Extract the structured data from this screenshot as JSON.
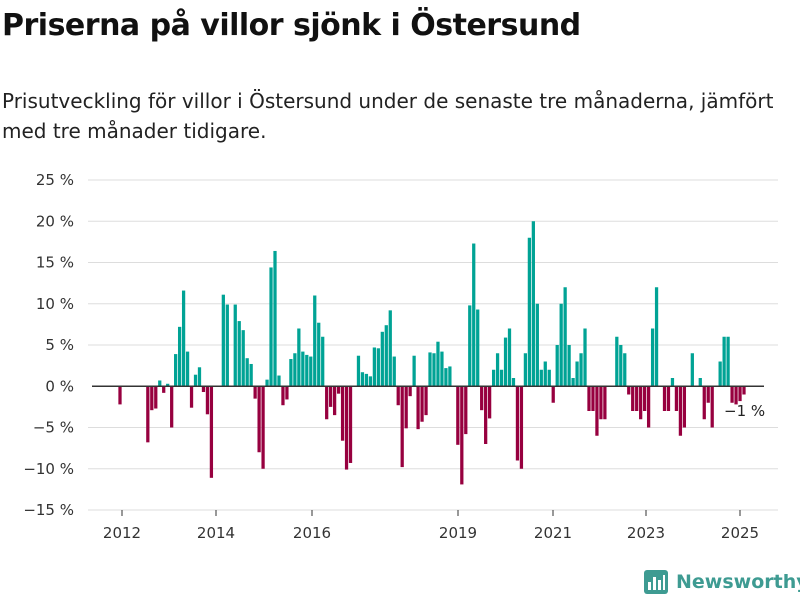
{
  "header": {
    "title": "Priserna på villor sjönk i Östersund",
    "subtitle": "Prisutveckling för villor i Östersund under de senaste tre månaderna, jämfört med tre månader tidigare."
  },
  "brand": {
    "name": "Newsworthy",
    "icon": "bar-chart-logo-icon"
  },
  "chart_data": {
    "type": "bar",
    "title": "Priserna på villor sjönk i Östersund",
    "subtitle": "Prisutveckling för villor i Östersund under de senaste tre månaderna, jämfört med tre månader tidigare.",
    "xlabel": "",
    "ylabel": "",
    "ylim": [
      -15,
      25
    ],
    "y_ticks": [
      25,
      20,
      15,
      10,
      5,
      0,
      -5,
      -10,
      -15
    ],
    "y_tick_labels": [
      "25 %",
      "20 %",
      "15 %",
      "10 %",
      "5 %",
      "0 %",
      "−5 %",
      "−10 %",
      "−15 %"
    ],
    "x_ticks": [
      "2012",
      "2014",
      "2016",
      "2019",
      "2021",
      "2023",
      "2025"
    ],
    "grid": true,
    "colors": {
      "positive": "#00a395",
      "negative": "#97003f",
      "grid": "#dddddd",
      "zero_line": "#333333"
    },
    "annotation": "−1 %",
    "series": [
      {
        "values": [
          -2.2,
          0,
          0,
          0,
          0,
          0,
          0,
          -6.8,
          -2.9,
          -2.7,
          0.7,
          -0.8,
          0.3,
          -5,
          3.9,
          7.2,
          11.6,
          4.2,
          -2.6,
          1.4,
          2.3,
          -0.7,
          -3.4,
          -11.1,
          0,
          0,
          11.1,
          9.9,
          0,
          9.9,
          7.9,
          6.8,
          3.4,
          2.7,
          -1.5,
          -8,
          -10,
          0.8,
          14.4,
          16.4,
          1.3,
          -2.3,
          -1.6,
          3.3,
          4,
          7,
          4.2,
          3.8,
          3.6,
          11,
          7.7,
          6,
          -4,
          -2.5,
          -3.5,
          -0.9,
          -6.6,
          -10.1,
          -9.3,
          0,
          3.7,
          1.7,
          1.5,
          1.2,
          4.7,
          4.6,
          6.6,
          7.4,
          9.2,
          3.6,
          -2.3,
          -9.8,
          -5.1,
          -1.2,
          3.7,
          -5.2,
          -4.3,
          -3.5,
          4.1,
          4,
          5.4,
          4.2,
          2.2,
          2.4,
          0,
          -7.1,
          -11.9,
          -5.8,
          9.8,
          17.3,
          9.3,
          -2.9,
          -7,
          -3.9,
          2,
          4,
          2,
          5.9,
          7,
          1,
          -9,
          -10,
          4,
          18,
          20,
          10,
          2,
          3,
          2,
          -2,
          5,
          10,
          12,
          5,
          1,
          3,
          4,
          7,
          -3,
          -3,
          -6,
          -4,
          -4,
          0,
          0,
          6,
          5,
          4,
          -1,
          -3,
          -3,
          -4,
          -3,
          -5,
          7,
          12,
          0,
          -3,
          -3,
          1,
          -3,
          -6,
          -5,
          0,
          4,
          0,
          1,
          -4,
          -2,
          -5,
          0,
          3,
          6,
          6,
          -2,
          -2.2,
          -1.8,
          -1
        ]
      }
    ]
  }
}
